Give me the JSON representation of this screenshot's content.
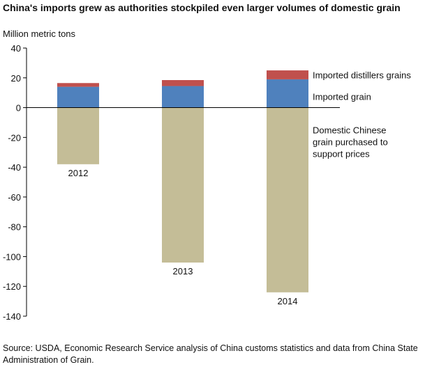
{
  "title": "China's imports grew as authorities stockpiled even larger volumes of domestic grain",
  "source": "Source: USDA, Economic Research Service analysis of China customs statistics and data from China State Administration of Grain.",
  "colors": {
    "imported_distillers_grains": "#c0504d",
    "imported_grain": "#4f81bd",
    "domestic_grain": "#c4bd97",
    "axis": "#000000"
  },
  "chart_data": {
    "type": "bar",
    "stacked": true,
    "ylabel": "Million metric tons",
    "ylim": [
      -140,
      40
    ],
    "yticks": [
      40,
      20,
      0,
      -20,
      -40,
      -60,
      -80,
      -100,
      -120,
      -140
    ],
    "categories": [
      "2012",
      "2013",
      "2014"
    ],
    "series": [
      {
        "name": "Domestic Chinese grain purchased to support prices",
        "key": "domestic_grain",
        "values": [
          -38,
          -104,
          -124
        ]
      },
      {
        "name": "Imported grain",
        "key": "imported_grain",
        "values": [
          14,
          14.5,
          19
        ]
      },
      {
        "name": "Imported distillers grains",
        "key": "imported_distillers_grains",
        "values": [
          2.5,
          4,
          6
        ]
      }
    ],
    "legend_placement": "right, next to the last bar",
    "grid": false
  }
}
